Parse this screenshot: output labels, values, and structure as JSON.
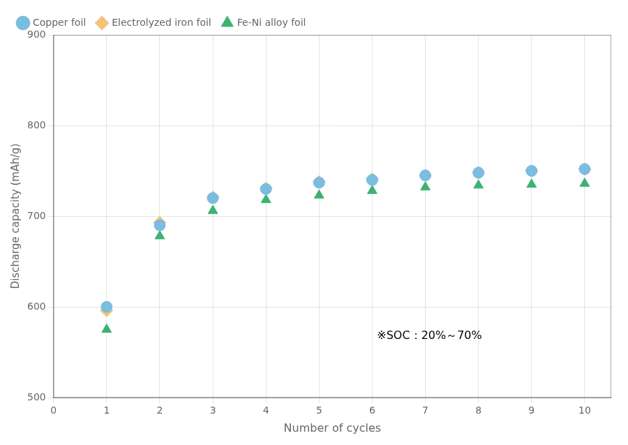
{
  "chart_data": {
    "type": "scatter",
    "xlabel": "Number of cycles",
    "ylabel": "Discharge capacity (mAh/g)",
    "annotation": "※SOC：20%～70%",
    "x": [
      1,
      2,
      3,
      4,
      5,
      6,
      7,
      8,
      9,
      10
    ],
    "series": [
      {
        "name": "Copper foil",
        "color": "#7BBDE0",
        "marker": "circle",
        "values": [
          600,
          690,
          720,
          730,
          737,
          740,
          745,
          748,
          750,
          752
        ]
      },
      {
        "name": "Electrolyzed iron foil",
        "color": "#F5C27A",
        "marker": "diamond",
        "values": [
          596,
          693,
          721,
          731,
          738,
          741,
          745,
          748,
          750,
          752
        ]
      },
      {
        "name": "Fe-Ni alloy foil",
        "color": "#3CB371",
        "marker": "triangle",
        "values": [
          575,
          678,
          706,
          718,
          723,
          728,
          732,
          734,
          735,
          736
        ]
      }
    ],
    "xlim": [
      0,
      10.5
    ],
    "xticks": [
      0,
      1,
      2,
      3,
      4,
      5,
      6,
      7,
      8,
      9,
      10
    ],
    "ylim": [
      500,
      900
    ],
    "yticks": [
      500,
      600,
      700,
      800,
      900
    ],
    "grid": true,
    "legend": "upper left"
  }
}
